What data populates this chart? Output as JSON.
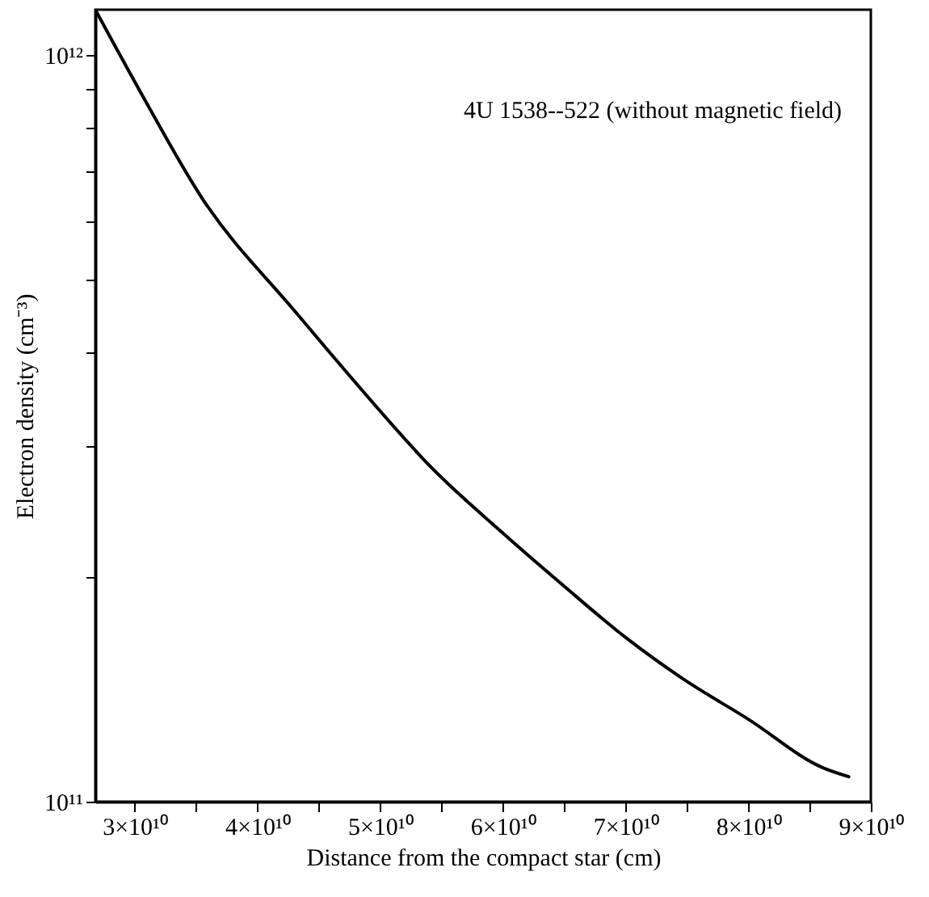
{
  "chart_data": {
    "type": "line",
    "xlabel": "Distance from the compact star (cm)",
    "ylabel": "Electron density (cm⁻³)",
    "annotations": [
      "4U 1538--522 (without magnetic field)"
    ],
    "x": [
      26800000000.0,
      30400000000.0,
      35500000000.0,
      43100000000.0,
      52500000000.0,
      53400000000.0,
      60000000000.0,
      64900000000.0,
      70000000000.0,
      74700000000.0,
      80000000000.0,
      86100000000.0,
      88200000000.0
    ],
    "series": [
      {
        "color": "#000000",
        "values": [
          1150000000000.0,
          897000000000.0,
          643000000000.0,
          453000000000.0,
          300000000000.0,
          289000000000.0,
          229000000000.0,
          195000000000.0,
          166000000000.0,
          146000000000.0,
          129000000000.0,
          111000000000.0,
          108000000000.0
        ]
      }
    ],
    "log": "y",
    "grid": false,
    "marker": "none",
    "line_style": "solid",
    "xlim": [
      26800000000.0,
      90000000000.0
    ],
    "ylim": [
      100000000000.0,
      1150000000000.0
    ],
    "xticks": [
      {
        "value": 30000000000.0,
        "label": "3×10¹⁰"
      },
      {
        "value": 35000000000.0,
        "label": null
      },
      {
        "value": 40000000000.0,
        "label": "4×10¹⁰"
      },
      {
        "value": 45000000000.0,
        "label": null
      },
      {
        "value": 50000000000.0,
        "label": "5×10¹⁰"
      },
      {
        "value": 55000000000.0,
        "label": null
      },
      {
        "value": 60000000000.0,
        "label": "6×10¹⁰"
      },
      {
        "value": 65000000000.0,
        "label": null
      },
      {
        "value": 70000000000.0,
        "label": "7×10¹⁰"
      },
      {
        "value": 75000000000.0,
        "label": null
      },
      {
        "value": 80000000000.0,
        "label": "8×10¹⁰"
      },
      {
        "value": 85000000000.0,
        "label": null
      },
      {
        "value": 90000000000.0,
        "label": "9×10¹⁰"
      }
    ],
    "yticks": [
      {
        "value": 100000000000.0,
        "label": "10¹¹"
      },
      {
        "value": 200000000000.0,
        "label": null
      },
      {
        "value": 300000000000.0,
        "label": null
      },
      {
        "value": 400000000000.0,
        "label": null
      },
      {
        "value": 500000000000.0,
        "label": null
      },
      {
        "value": 600000000000.0,
        "label": null
      },
      {
        "value": 700000000000.0,
        "label": null
      },
      {
        "value": 800000000000.0,
        "label": null
      },
      {
        "value": 900000000000.0,
        "label": null
      },
      {
        "value": 1000000000000.0,
        "label": "10¹²"
      }
    ]
  }
}
